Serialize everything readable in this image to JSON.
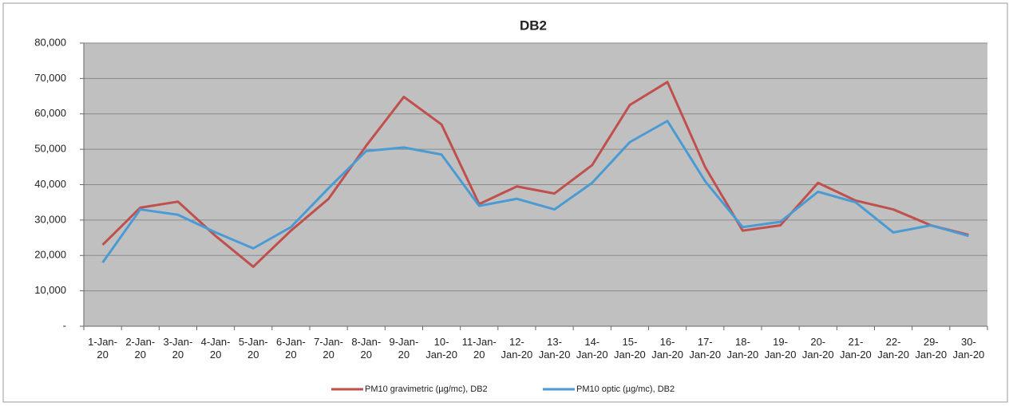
{
  "chart_data": {
    "type": "line",
    "title": "DB2",
    "categories": [
      "1-Jan-20",
      "2-Jan-20",
      "3-Jan-20",
      "4-Jan-20",
      "5-Jan-20",
      "6-Jan-20",
      "7-Jan-20",
      "8-Jan-20",
      "9-Jan-20",
      "10-Jan-20",
      "11-Jan-20",
      "12-Jan-20",
      "13-Jan-20",
      "14-Jan-20",
      "15-Jan-20",
      "16-Jan-20",
      "17-Jan-20",
      "18-Jan-20",
      "19-Jan-20",
      "20-Jan-20",
      "21-Jan-20",
      "22-Jan-20",
      "29-Jan-20",
      "30-Jan-20"
    ],
    "series": [
      {
        "name": "PM10 gravimetric (µg/mc), DB2",
        "color": "#c0504d",
        "values": [
          23000,
          33500,
          35200,
          25500,
          16800,
          27000,
          36000,
          51000,
          64800,
          57000,
          34500,
          39500,
          37500,
          45500,
          62500,
          69000,
          45000,
          27000,
          28500,
          40500,
          35500,
          33000,
          28500,
          25800
        ]
      },
      {
        "name": "PM10 optic (µg/mc), DB2",
        "color": "#4a9bd4",
        "values": [
          18000,
          33000,
          31500,
          26500,
          22000,
          28000,
          39000,
          49500,
          50500,
          48500,
          34000,
          36000,
          33000,
          40500,
          52000,
          58000,
          41000,
          28000,
          29500,
          38000,
          35000,
          26500,
          28500,
          25500
        ]
      }
    ],
    "ylim": [
      0,
      80000
    ],
    "yticks": [
      {
        "value": 0,
        "label": "-"
      },
      {
        "value": 10000,
        "label": "10,000"
      },
      {
        "value": 20000,
        "label": "20,000"
      },
      {
        "value": 30000,
        "label": "30,000"
      },
      {
        "value": 40000,
        "label": "40,000"
      },
      {
        "value": 50000,
        "label": "50,000"
      },
      {
        "value": 60000,
        "label": "60,000"
      },
      {
        "value": 70000,
        "label": "70,000"
      },
      {
        "value": 80000,
        "label": "80,000"
      }
    ],
    "grid": true
  }
}
